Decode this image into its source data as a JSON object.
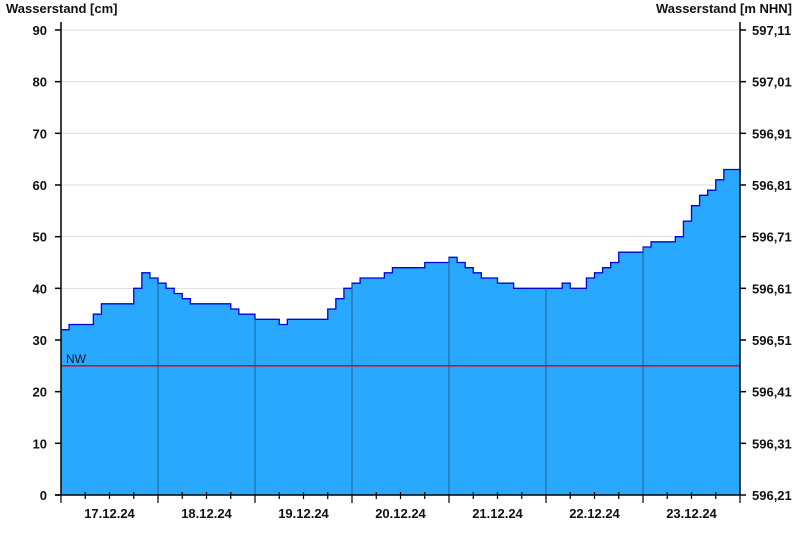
{
  "chart_data": {
    "type": "area",
    "ylabel_left": "Wasserstand [cm]",
    "ylabel_right": "Wasserstand [m NHN]",
    "ylim": [
      0,
      90
    ],
    "yticks_left": [
      "0",
      "10",
      "20",
      "30",
      "40",
      "50",
      "60",
      "70",
      "80",
      "90"
    ],
    "yticks_right": [
      "596,21",
      "596,31",
      "596,41",
      "596,51",
      "596,61",
      "596,71",
      "596,81",
      "596,91",
      "597,01",
      "597,11"
    ],
    "xlim": [
      "17.12.24 00:00",
      "24.12.24 00:00"
    ],
    "xtick_labels": [
      "17.12.24",
      "18.12.24",
      "19.12.24",
      "20.12.24",
      "21.12.24",
      "22.12.24",
      "23.12.24"
    ],
    "grid": "horizontal",
    "colors": {
      "fill": "#29a8ff",
      "line": "#0000e0",
      "nw_line": "#e00000",
      "grid": "#dddddd",
      "day_separator": "#1f5f8f"
    },
    "reference_line": {
      "label": "NW",
      "value": 25
    },
    "series": [
      {
        "interval_hours": 2,
        "start": "17.12.24 00:00",
        "values": [
          32,
          33,
          33,
          33,
          35,
          37,
          37,
          37,
          37,
          40,
          43,
          42,
          41,
          40,
          39,
          38,
          37,
          37,
          37,
          37,
          37,
          36,
          35,
          35,
          34,
          34,
          34,
          33,
          34,
          34,
          34,
          34,
          34,
          36,
          38,
          40,
          41,
          42,
          42,
          42,
          43,
          44,
          44,
          44,
          44,
          45,
          45,
          45,
          46,
          45,
          44,
          43,
          42,
          42,
          41,
          41,
          40,
          40,
          40,
          40,
          40,
          40,
          41,
          40,
          40,
          42,
          43,
          44,
          45,
          47,
          47,
          47,
          48,
          49,
          49,
          49,
          50,
          53,
          56,
          58,
          59,
          61,
          63,
          63,
          62
        ]
      }
    ]
  }
}
